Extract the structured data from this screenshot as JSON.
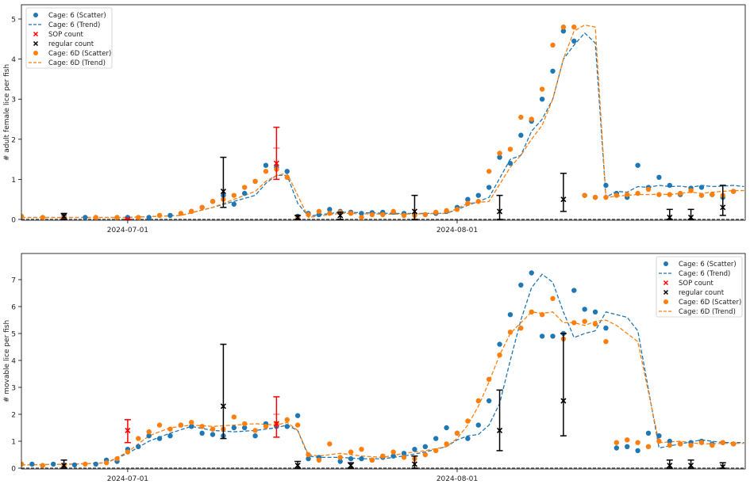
{
  "colors": {
    "cage6": "#1f77b4",
    "cage6d": "#ff7f0e",
    "sop": "#ff0000",
    "regular": "#000000",
    "zero_line": "#555555"
  },
  "legend_labels": [
    "Cage: 6 (Scatter)",
    "Cage: 6 (Trend)",
    "SOP count",
    "regular count",
    "Cage: 6D (Scatter)",
    "Cage: 6D (Trend)"
  ],
  "chart_data": [
    {
      "type": "scatter",
      "title": "",
      "xlabel": "",
      "ylabel": "# adult female lice per fish",
      "x_unit": "days since 2024-06-21",
      "xlim": [
        0,
        68
      ],
      "ylim": [
        0,
        5.3
      ],
      "yticks": [
        0,
        1,
        2,
        3,
        4,
        5
      ],
      "xticks": [
        {
          "x": 10,
          "label": "2024-07-01"
        },
        {
          "x": 41,
          "label": "2024-08-01"
        }
      ],
      "legend_position": "upper left",
      "series": [
        {
          "name": "Cage: 6 (Scatter)",
          "kind": "scatter",
          "x": [
            4,
            6,
            10,
            12,
            14,
            16,
            17,
            18,
            19,
            20,
            21,
            22,
            23,
            24,
            25,
            26,
            27,
            28,
            29,
            30,
            31,
            32,
            33,
            34,
            35,
            36,
            37,
            38,
            39,
            40,
            41,
            42,
            43,
            44,
            45,
            46,
            47,
            48,
            49,
            50,
            51,
            52,
            53,
            54,
            55,
            56,
            57,
            58,
            59,
            60,
            61,
            62,
            63,
            64,
            65,
            66,
            67
          ],
          "y": [
            0.08,
            0.05,
            0.05,
            0.05,
            0.1,
            0.2,
            0.3,
            0.45,
            0.6,
            0.38,
            0.65,
            0.95,
            1.35,
            1.3,
            1.2,
            0.08,
            0.15,
            0.12,
            0.25,
            0.2,
            0.18,
            0.15,
            0.17,
            0.18,
            0.18,
            0.15,
            0.12,
            0.12,
            0.15,
            0.2,
            0.3,
            0.5,
            0.6,
            0.8,
            1.55,
            1.4,
            2.1,
            2.45,
            3.0,
            3.7,
            4.7,
            4.45,
            0.6,
            0.55,
            0.85,
            0.65,
            0.55,
            1.35,
            0.8,
            1.05,
            0.85,
            0.62,
            0.78,
            0.8,
            0.62,
            0.55,
            0.7
          ]
        },
        {
          "name": "Cage: 6 (Trend)",
          "kind": "line",
          "x": [
            0,
            5,
            10,
            15,
            18,
            20,
            22,
            23,
            24,
            25,
            26,
            27,
            30,
            35,
            40,
            42,
            44,
            46,
            47,
            48,
            49,
            50,
            51,
            52,
            53,
            54,
            55,
            56,
            57,
            58,
            59,
            60,
            61,
            62,
            63,
            64,
            65,
            66,
            67,
            68
          ],
          "y": [
            0.05,
            0.05,
            0.05,
            0.1,
            0.3,
            0.45,
            0.6,
            0.9,
            1.1,
            1.1,
            0.4,
            0.08,
            0.18,
            0.15,
            0.15,
            0.35,
            0.55,
            1.5,
            1.6,
            2.2,
            2.5,
            3.0,
            4.0,
            4.35,
            4.65,
            4.4,
            0.55,
            0.7,
            0.68,
            0.82,
            0.8,
            0.85,
            0.82,
            0.83,
            0.8,
            0.85,
            0.82,
            0.83,
            0.85,
            0.82
          ]
        },
        {
          "name": "Cage: 6D (Scatter)",
          "kind": "scatter",
          "x": [
            0,
            2,
            4,
            7,
            9,
            11,
            13,
            15,
            16,
            17,
            18,
            19,
            20,
            21,
            22,
            23,
            24,
            25,
            26,
            27,
            28,
            29,
            30,
            31,
            32,
            33,
            34,
            35,
            36,
            37,
            38,
            39,
            40,
            41,
            42,
            43,
            44,
            45,
            46,
            47,
            48,
            49,
            50,
            51,
            52,
            53,
            54,
            55,
            56,
            57,
            58,
            59,
            60,
            61,
            62,
            63,
            64,
            65,
            66,
            67
          ],
          "y": [
            0.08,
            0.05,
            0.05,
            0.05,
            0.05,
            0.05,
            0.1,
            0.15,
            0.2,
            0.3,
            0.45,
            0.5,
            0.6,
            0.8,
            0.95,
            1.2,
            1.25,
            1.05,
            0.05,
            0.12,
            0.2,
            0.15,
            0.18,
            0.15,
            0.05,
            0.12,
            0.12,
            0.2,
            0.1,
            0.1,
            0.12,
            0.18,
            0.22,
            0.25,
            0.4,
            0.45,
            1.2,
            1.65,
            1.75,
            2.55,
            2.5,
            3.25,
            4.35,
            4.8,
            4.8,
            0.6,
            0.55,
            0.55,
            0.6,
            0.62,
            0.65,
            0.75,
            0.62,
            0.62,
            0.65,
            0.72,
            0.6,
            0.62,
            0.6,
            0.7
          ]
        },
        {
          "name": "Cage: 6D (Trend)",
          "kind": "line",
          "x": [
            0,
            5,
            10,
            15,
            18,
            20,
            22,
            23,
            24,
            25,
            26,
            27,
            30,
            35,
            40,
            42,
            44,
            46,
            47,
            48,
            49,
            50,
            51,
            52,
            53,
            54,
            55,
            56,
            57,
            58,
            59,
            60,
            61,
            62,
            63,
            64,
            65,
            66,
            67,
            68
          ],
          "y": [
            0.05,
            0.05,
            0.05,
            0.1,
            0.3,
            0.5,
            0.7,
            0.95,
            1.1,
            1.15,
            0.6,
            0.05,
            0.15,
            0.13,
            0.15,
            0.4,
            0.45,
            1.3,
            1.6,
            2.0,
            2.35,
            3.0,
            4.0,
            4.7,
            4.85,
            4.8,
            0.55,
            0.58,
            0.6,
            0.62,
            0.62,
            0.63,
            0.62,
            0.65,
            0.68,
            0.65,
            0.68,
            0.7,
            0.72,
            0.72
          ]
        },
        {
          "name": "SOP count",
          "kind": "errorbar",
          "x": [
            10,
            24
          ],
          "y": [
            0.0,
            1.4
          ],
          "yerr_low": [
            0.0,
            1.0
          ],
          "yerr_high": [
            0.0,
            2.3
          ],
          "cap_mid": [
            null,
            1.78
          ]
        },
        {
          "name": "regular count",
          "kind": "errorbar",
          "x": [
            4,
            19,
            26,
            30,
            37,
            45,
            51,
            61,
            63,
            66
          ],
          "y": [
            0.08,
            0.7,
            0.05,
            0.1,
            0.2,
            0.2,
            0.5,
            0.05,
            0.05,
            0.3
          ],
          "yerr_low": [
            0.0,
            0.3,
            0.0,
            0.0,
            0.0,
            0.0,
            0.2,
            0.0,
            0.0,
            0.1
          ],
          "yerr_high": [
            0.15,
            1.55,
            0.1,
            0.18,
            0.6,
            0.6,
            1.15,
            0.25,
            0.25,
            0.85
          ]
        }
      ]
    },
    {
      "type": "scatter",
      "title": "",
      "xlabel": "",
      "ylabel": "# movable lice per fish",
      "x_unit": "days since 2024-06-21",
      "xlim": [
        0,
        68
      ],
      "ylim": [
        0,
        7.9
      ],
      "yticks": [
        0,
        1,
        2,
        3,
        4,
        5,
        6,
        7
      ],
      "xticks": [
        {
          "x": 10,
          "label": "2024-07-01"
        },
        {
          "x": 41,
          "label": "2024-08-01"
        }
      ],
      "legend_position": "upper right",
      "series": [
        {
          "name": "Cage: 6 (Scatter)",
          "kind": "scatter",
          "x": [
            1,
            3,
            5,
            7,
            8,
            9,
            10,
            11,
            12,
            13,
            14,
            15,
            16,
            17,
            18,
            19,
            20,
            21,
            22,
            23,
            24,
            25,
            26,
            27,
            28,
            30,
            31,
            32,
            33,
            34,
            35,
            36,
            37,
            38,
            39,
            40,
            41,
            42,
            43,
            44,
            45,
            46,
            47,
            48,
            49,
            50,
            51,
            52,
            53,
            54,
            55,
            56,
            57,
            58,
            59,
            60,
            61,
            62,
            63,
            64,
            65,
            66,
            67
          ],
          "y": [
            0.15,
            0.15,
            0.12,
            0.15,
            0.3,
            0.25,
            0.7,
            0.8,
            1.2,
            1.1,
            1.2,
            1.6,
            1.55,
            1.3,
            1.25,
            1.2,
            1.5,
            1.5,
            1.2,
            1.65,
            1.55,
            1.55,
            1.95,
            0.35,
            0.4,
            0.25,
            0.35,
            0.35,
            0.3,
            0.4,
            0.45,
            0.55,
            0.7,
            0.8,
            1.1,
            1.5,
            1.3,
            1.1,
            1.6,
            2.5,
            4.6,
            5.7,
            6.8,
            7.25,
            4.9,
            4.9,
            5.0,
            6.6,
            5.9,
            5.8,
            5.2,
            0.75,
            0.8,
            0.65,
            1.3,
            1.2,
            1.0,
            0.9,
            0.95,
            1.0,
            0.9,
            0.95,
            0.9
          ]
        },
        {
          "name": "Cage: 6 (Trend)",
          "kind": "line",
          "x": [
            0,
            5,
            8,
            10,
            12,
            14,
            16,
            18,
            20,
            22,
            24,
            25,
            26,
            27,
            28,
            30,
            32,
            34,
            36,
            38,
            40,
            41,
            42,
            43,
            44,
            45,
            46,
            47,
            48,
            49,
            50,
            51,
            52,
            53,
            54,
            55,
            56,
            57,
            58,
            60,
            62,
            64,
            66,
            68
          ],
          "y": [
            0.12,
            0.15,
            0.2,
            0.55,
            1.0,
            1.3,
            1.55,
            1.4,
            1.35,
            1.4,
            1.5,
            1.6,
            1.4,
            0.45,
            0.4,
            0.4,
            0.35,
            0.35,
            0.45,
            0.6,
            0.8,
            1.05,
            1.2,
            1.25,
            1.6,
            2.4,
            4.0,
            5.5,
            6.7,
            7.2,
            6.9,
            5.8,
            4.85,
            5.0,
            5.1,
            5.8,
            5.7,
            5.6,
            5.1,
            0.75,
            0.9,
            1.05,
            0.95,
            0.95
          ]
        },
        {
          "name": "Cage: 6D (Scatter)",
          "kind": "scatter",
          "x": [
            0,
            2,
            4,
            6,
            8,
            9,
            10,
            11,
            12,
            13,
            14,
            15,
            16,
            17,
            18,
            19,
            20,
            21,
            22,
            23,
            24,
            25,
            26,
            27,
            28,
            29,
            30,
            31,
            32,
            33,
            34,
            35,
            36,
            37,
            38,
            39,
            40,
            41,
            42,
            43,
            44,
            45,
            46,
            47,
            48,
            49,
            50,
            51,
            52,
            53,
            54,
            55,
            56,
            57,
            58,
            59,
            60,
            61,
            62,
            63,
            64,
            65,
            66,
            67
          ],
          "y": [
            0.15,
            0.1,
            0.1,
            0.15,
            0.2,
            0.35,
            0.6,
            1.1,
            1.35,
            1.6,
            1.45,
            1.6,
            1.7,
            1.55,
            1.45,
            1.45,
            1.9,
            1.65,
            1.4,
            1.55,
            1.65,
            1.8,
            1.6,
            0.5,
            0.3,
            0.9,
            0.4,
            0.6,
            0.7,
            0.3,
            0.45,
            0.6,
            0.4,
            0.35,
            0.5,
            0.65,
            0.9,
            1.3,
            1.75,
            2.5,
            3.3,
            4.2,
            5.05,
            5.2,
            5.8,
            5.7,
            6.3,
            4.8,
            5.4,
            5.45,
            5.35,
            4.7,
            0.95,
            1.05,
            0.95,
            0.8,
            1.0,
            0.85,
            0.9,
            0.85,
            0.95,
            0.85,
            0.95,
            0.9
          ]
        },
        {
          "name": "Cage: 6D (Trend)",
          "kind": "line",
          "x": [
            0,
            5,
            8,
            10,
            12,
            14,
            16,
            18,
            20,
            22,
            24,
            25,
            26,
            27,
            28,
            30,
            32,
            34,
            36,
            38,
            40,
            41,
            42,
            43,
            44,
            45,
            46,
            47,
            48,
            49,
            50,
            51,
            52,
            53,
            54,
            55,
            56,
            57,
            58,
            60,
            62,
            64,
            66,
            68
          ],
          "y": [
            0.12,
            0.15,
            0.2,
            0.6,
            1.2,
            1.5,
            1.6,
            1.55,
            1.6,
            1.65,
            1.6,
            1.7,
            1.4,
            0.5,
            0.45,
            0.55,
            0.45,
            0.4,
            0.55,
            0.65,
            0.8,
            1.1,
            1.6,
            2.3,
            3.2,
            4.2,
            5.0,
            5.4,
            5.8,
            5.75,
            5.8,
            5.4,
            5.4,
            5.3,
            5.45,
            5.5,
            5.3,
            5.0,
            4.7,
            0.95,
            1.0,
            0.9,
            0.92,
            0.92
          ]
        },
        {
          "name": "SOP count",
          "kind": "errorbar",
          "x": [
            10,
            24
          ],
          "y": [
            1.4,
            1.65
          ],
          "yerr_low": [
            0.95,
            1.15
          ],
          "yerr_high": [
            1.8,
            2.65
          ],
          "cap_mid": [
            null,
            2.0
          ]
        },
        {
          "name": "regular count",
          "kind": "errorbar",
          "x": [
            4,
            19,
            26,
            31,
            37,
            45,
            51,
            61,
            63,
            66
          ],
          "y": [
            0.1,
            2.3,
            0.1,
            0.1,
            0.15,
            1.4,
            2.5,
            0.1,
            0.1,
            0.05
          ],
          "yerr_low": [
            0.0,
            1.1,
            0.0,
            0.0,
            0.0,
            0.65,
            1.2,
            0.0,
            0.0,
            0.0
          ],
          "yerr_high": [
            0.3,
            4.6,
            0.25,
            0.2,
            0.45,
            2.9,
            5.0,
            0.3,
            0.3,
            0.2
          ]
        }
      ]
    }
  ]
}
